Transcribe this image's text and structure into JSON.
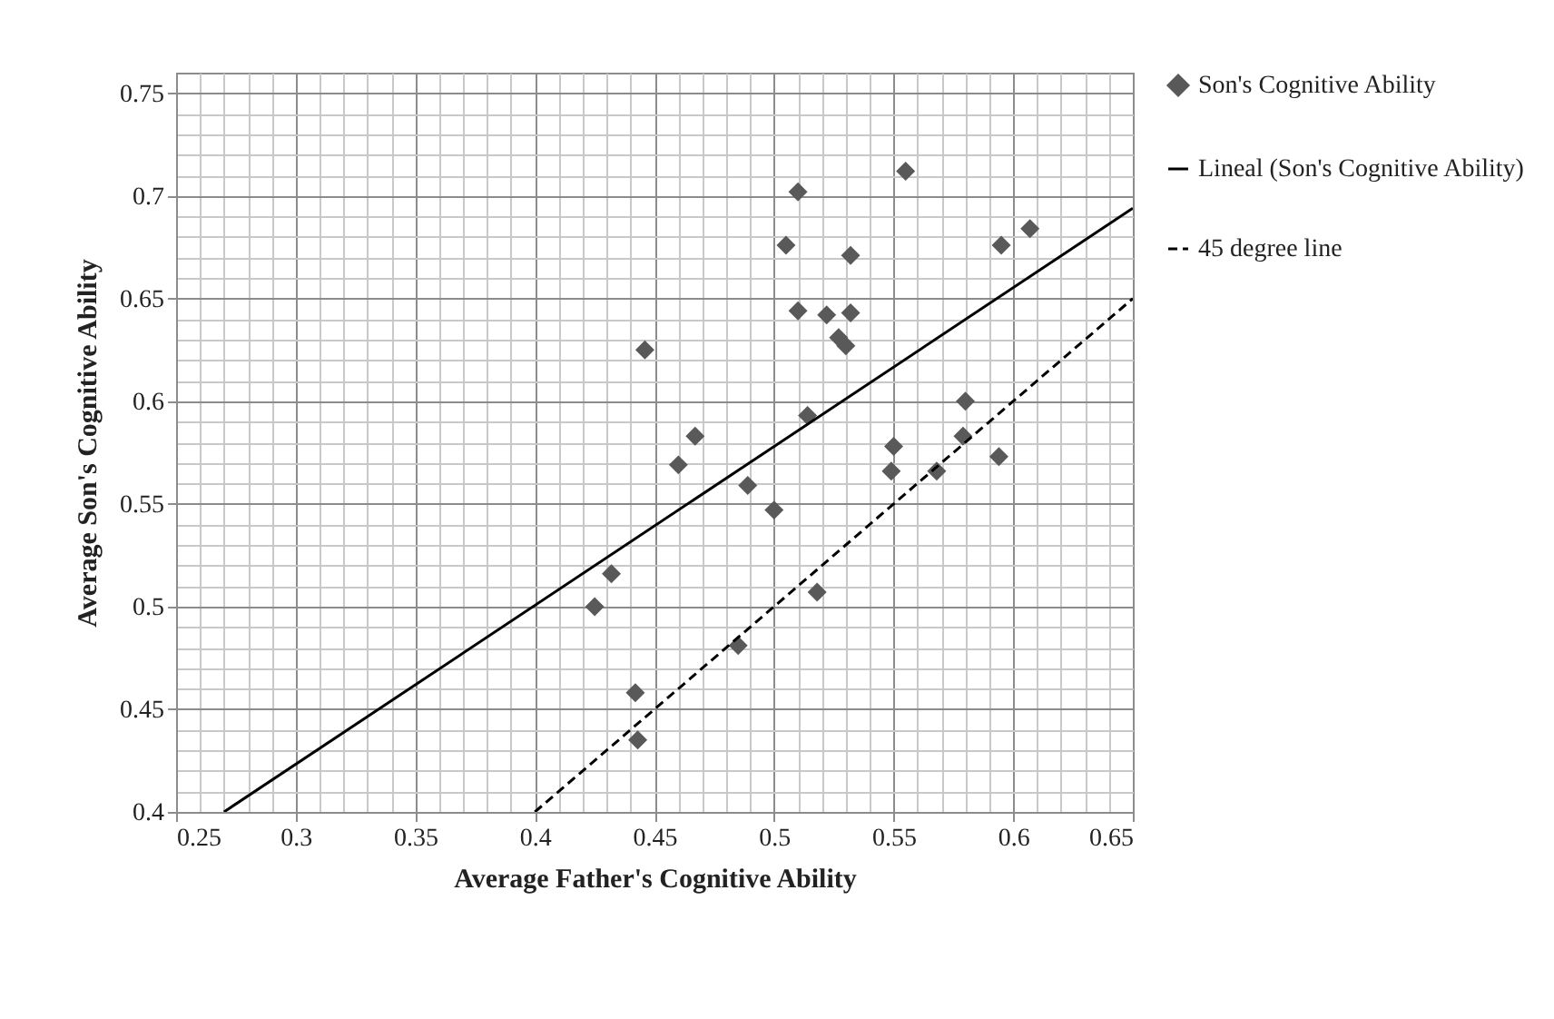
{
  "chart_data": {
    "type": "scatter",
    "xlabel": "Average Father's Cognitive  Ability",
    "ylabel": "Average Son's Cognitive  Ability",
    "xlim": [
      0.25,
      0.65
    ],
    "xticks": [
      0.25,
      0.3,
      0.35,
      0.4,
      0.45,
      0.5,
      0.55,
      0.6,
      0.65
    ],
    "ylim": [
      0.4,
      0.76
    ],
    "yticks": [
      0.4,
      0.45,
      0.5,
      0.55,
      0.6,
      0.65,
      0.7,
      0.75
    ],
    "grid": true,
    "legend": "right",
    "series": [
      {
        "name": "Son's Cognitive Ability",
        "marker": "diamond",
        "color": "#595959",
        "x": [
          0.425,
          0.432,
          0.442,
          0.443,
          0.446,
          0.46,
          0.467,
          0.485,
          0.489,
          0.5,
          0.505,
          0.51,
          0.51,
          0.514,
          0.518,
          0.522,
          0.527,
          0.53,
          0.532,
          0.532,
          0.549,
          0.55,
          0.555,
          0.568,
          0.579,
          0.58,
          0.594,
          0.595,
          0.607
        ],
        "values": [
          0.5,
          0.516,
          0.458,
          0.435,
          0.625,
          0.569,
          0.583,
          0.481,
          0.559,
          0.547,
          0.676,
          0.702,
          0.644,
          0.593,
          0.507,
          0.642,
          0.631,
          0.627,
          0.671,
          0.643,
          0.566,
          0.578,
          0.712,
          0.566,
          0.583,
          0.6,
          0.573,
          0.676,
          0.684
        ]
      },
      {
        "name": "Lineal (Son's Cognitive Ability)",
        "type": "line",
        "line_style": "solid",
        "color": "#000000",
        "x": [
          0.27,
          0.65
        ],
        "values": [
          0.4,
          0.694
        ]
      },
      {
        "name": "45 degree line",
        "type": "line",
        "line_style": "dashed",
        "color": "#000000",
        "x": [
          0.4,
          0.65
        ],
        "values": [
          0.4,
          0.65
        ]
      }
    ]
  }
}
